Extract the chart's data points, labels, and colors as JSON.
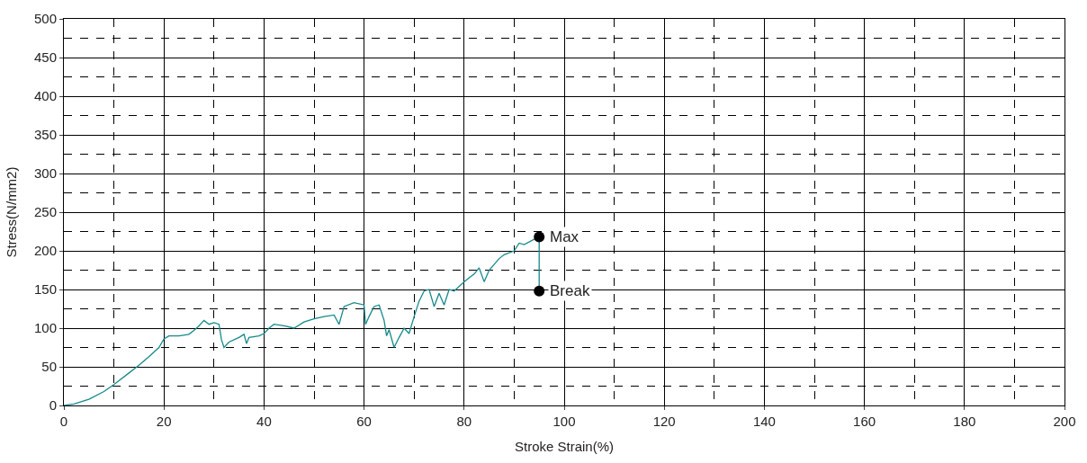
{
  "chart_data": {
    "type": "line",
    "xlabel": "Stroke Strain(%)",
    "ylabel": "Stress(N/mm2)",
    "series": [
      {
        "color": "#16898a",
        "x": [
          0,
          2,
          5,
          8,
          10,
          13,
          15,
          17,
          19,
          20,
          21,
          23,
          25,
          26,
          27,
          28,
          29,
          30,
          31,
          31.5,
          32,
          33,
          35,
          36,
          36.5,
          37,
          39,
          40,
          41,
          42,
          44,
          46,
          48,
          50,
          52,
          54,
          55,
          56,
          58,
          60,
          60.3,
          61,
          62,
          63,
          64,
          64.5,
          65,
          66,
          67,
          68,
          69,
          70,
          71,
          72,
          73,
          74,
          75,
          76,
          77,
          78,
          80,
          81,
          82,
          83,
          84,
          85,
          87,
          88,
          90,
          91,
          92,
          94,
          95,
          95
        ],
        "values": [
          0,
          2,
          8,
          18,
          27,
          42,
          52,
          63,
          75,
          86,
          90,
          90,
          92,
          97,
          103,
          110,
          105,
          107,
          105,
          85,
          75,
          82,
          88,
          92,
          80,
          88,
          90,
          93,
          100,
          105,
          103,
          100,
          108,
          112,
          115,
          117,
          105,
          128,
          133,
          130,
          105,
          115,
          128,
          130,
          110,
          90,
          98,
          75,
          88,
          100,
          93,
          115,
          135,
          148,
          150,
          128,
          145,
          130,
          150,
          148,
          160,
          165,
          170,
          178,
          160,
          175,
          190,
          195,
          200,
          210,
          208,
          215,
          218,
          148
        ]
      },
      {
        "type": "scatter",
        "marker": "circle",
        "color": "#000000",
        "x": [
          95,
          95
        ],
        "values": [
          218,
          148
        ]
      }
    ],
    "annotations": [
      {
        "text": "Max",
        "x": 95,
        "y": 218
      },
      {
        "text": "Break",
        "x": 95,
        "y": 148
      }
    ],
    "xlim": [
      0,
      200
    ],
    "xticks": [
      0,
      20,
      40,
      60,
      80,
      100,
      120,
      140,
      160,
      180,
      200
    ],
    "ylim": [
      0,
      500
    ],
    "yticks": [
      0,
      50,
      100,
      150,
      200,
      250,
      300,
      350,
      400,
      450,
      500
    ],
    "grid": true,
    "legend": false
  }
}
